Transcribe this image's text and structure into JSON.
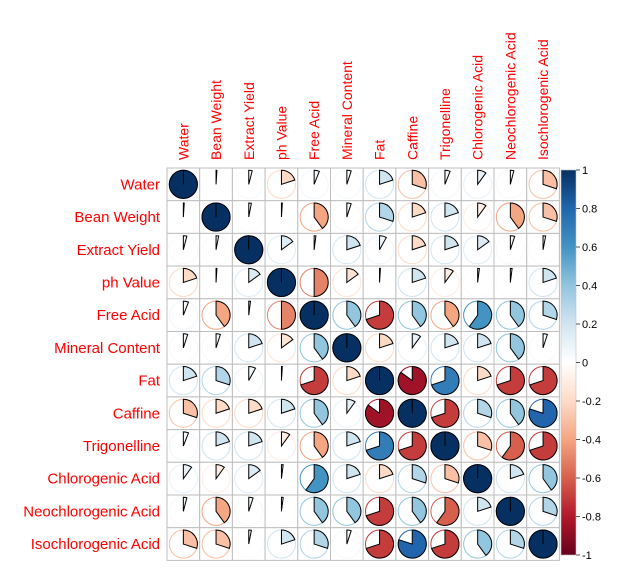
{
  "chart_data": {
    "type": "heatmap",
    "variables": [
      "Water",
      "Bean Weight",
      "Extract Yield",
      "ph Value",
      "Free Acid",
      "Mineral Content",
      "Fat",
      "Caffine",
      "Trigonelline",
      "Chlorogenic Acid",
      "Neochlorogenic Acid",
      "Isochlorogenic Acid"
    ],
    "matrix": [
      [
        1.0,
        0.01,
        0.04,
        -0.2,
        0.06,
        0.05,
        0.2,
        -0.3,
        0.06,
        0.1,
        0.04,
        -0.3
      ],
      [
        0.01,
        1.0,
        0.03,
        0.01,
        -0.4,
        0.05,
        0.3,
        -0.2,
        0.2,
        -0.1,
        -0.4,
        -0.3
      ],
      [
        0.04,
        0.03,
        1.0,
        0.15,
        0.02,
        0.2,
        0.08,
        -0.2,
        0.2,
        0.15,
        0.05,
        0.03
      ],
      [
        -0.2,
        0.01,
        0.15,
        1.0,
        -0.5,
        -0.15,
        0.01,
        0.2,
        -0.1,
        0.02,
        0.02,
        0.2
      ],
      [
        0.06,
        -0.4,
        0.02,
        -0.5,
        1.0,
        0.4,
        -0.7,
        0.4,
        -0.4,
        0.6,
        0.4,
        0.3
      ],
      [
        0.05,
        0.05,
        0.2,
        -0.15,
        0.4,
        1.0,
        -0.2,
        0.1,
        0.2,
        0.2,
        0.4,
        0.05
      ],
      [
        0.2,
        0.3,
        0.08,
        0.01,
        -0.7,
        -0.2,
        1.0,
        -0.85,
        0.7,
        -0.2,
        -0.7,
        -0.7
      ],
      [
        -0.3,
        -0.2,
        -0.2,
        0.2,
        0.4,
        0.1,
        -0.85,
        1.0,
        -0.7,
        0.3,
        0.4,
        0.8
      ],
      [
        0.06,
        0.2,
        0.2,
        -0.1,
        -0.4,
        0.2,
        0.7,
        -0.7,
        1.0,
        -0.3,
        -0.6,
        -0.7
      ],
      [
        0.1,
        -0.1,
        0.15,
        0.02,
        0.6,
        0.2,
        -0.2,
        0.3,
        -0.3,
        1.0,
        0.2,
        0.4
      ],
      [
        0.04,
        -0.4,
        0.05,
        0.02,
        0.4,
        0.4,
        -0.7,
        0.4,
        -0.6,
        0.2,
        1.0,
        0.3
      ],
      [
        -0.3,
        -0.3,
        0.03,
        0.2,
        0.3,
        0.05,
        -0.7,
        0.8,
        -0.7,
        0.4,
        0.3,
        1.0
      ]
    ],
    "colorbar": {
      "range": [
        -1,
        1
      ],
      "ticks": [
        "1",
        "0.8",
        "0.6",
        "0.4",
        "0.2",
        "0",
        "-0.2",
        "-0.4",
        "-0.6",
        "-0.8",
        "-1"
      ],
      "stops": [
        "#67001F",
        "#B2182B",
        "#D6604D",
        "#F4A582",
        "#FDDBC7",
        "#FFFFFF",
        "#D1E5F0",
        "#92C5DE",
        "#4393C3",
        "#2166AC",
        "#053061"
      ]
    },
    "label_color": "#FF0000",
    "grid_color": "#BEBEBE"
  }
}
